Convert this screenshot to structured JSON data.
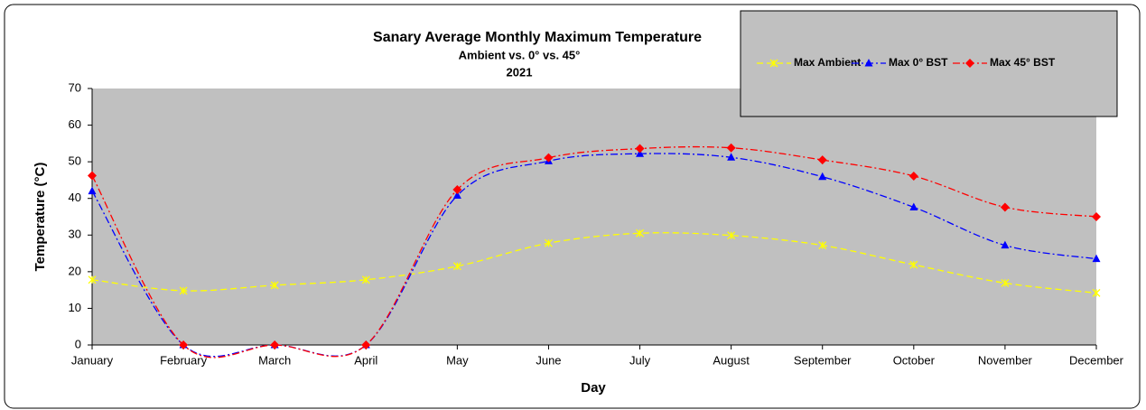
{
  "chart_data": {
    "type": "line",
    "title": "Sanary Average Monthly Maximum Temperature",
    "subtitle": "Ambient vs. 0° vs. 45°",
    "subtitle2": "2021",
    "x_label": "Day",
    "y_label": "Temperature (°C)",
    "categories": [
      "January",
      "February",
      "March",
      "April",
      "May",
      "June",
      "July",
      "August",
      "September",
      "October",
      "November",
      "December"
    ],
    "series": [
      {
        "name": "Max Ambient",
        "color": "#ffff00",
        "marker": "x",
        "dash": "dashed",
        "values": [
          17.8,
          14.8,
          16.3,
          17.8,
          21.5,
          27.8,
          30.5,
          29.9,
          27.2,
          21.9,
          16.9,
          14.2
        ]
      },
      {
        "name": "Max 0° BST",
        "color": "#0000ff",
        "marker": "triangle",
        "dash": "dash-dot",
        "values": [
          42,
          0,
          0,
          0,
          40.8,
          50.2,
          52.2,
          51.2,
          45.9,
          37.6,
          27.2,
          23.5
        ]
      },
      {
        "name": "Max 45° BST",
        "color": "#ff0000",
        "marker": "diamond",
        "dash": "dash-dot",
        "values": [
          46.2,
          0,
          0,
          0,
          42.4,
          51.1,
          53.6,
          53.8,
          50.5,
          46.1,
          37.6,
          35.0
        ]
      }
    ],
    "ylim": [
      0,
      70
    ],
    "yticks": [
      0,
      10,
      20,
      30,
      40,
      50,
      60,
      70
    ],
    "grid": false,
    "smooth": true,
    "legend": "top-right",
    "plot_background": "#c0c0c0"
  }
}
